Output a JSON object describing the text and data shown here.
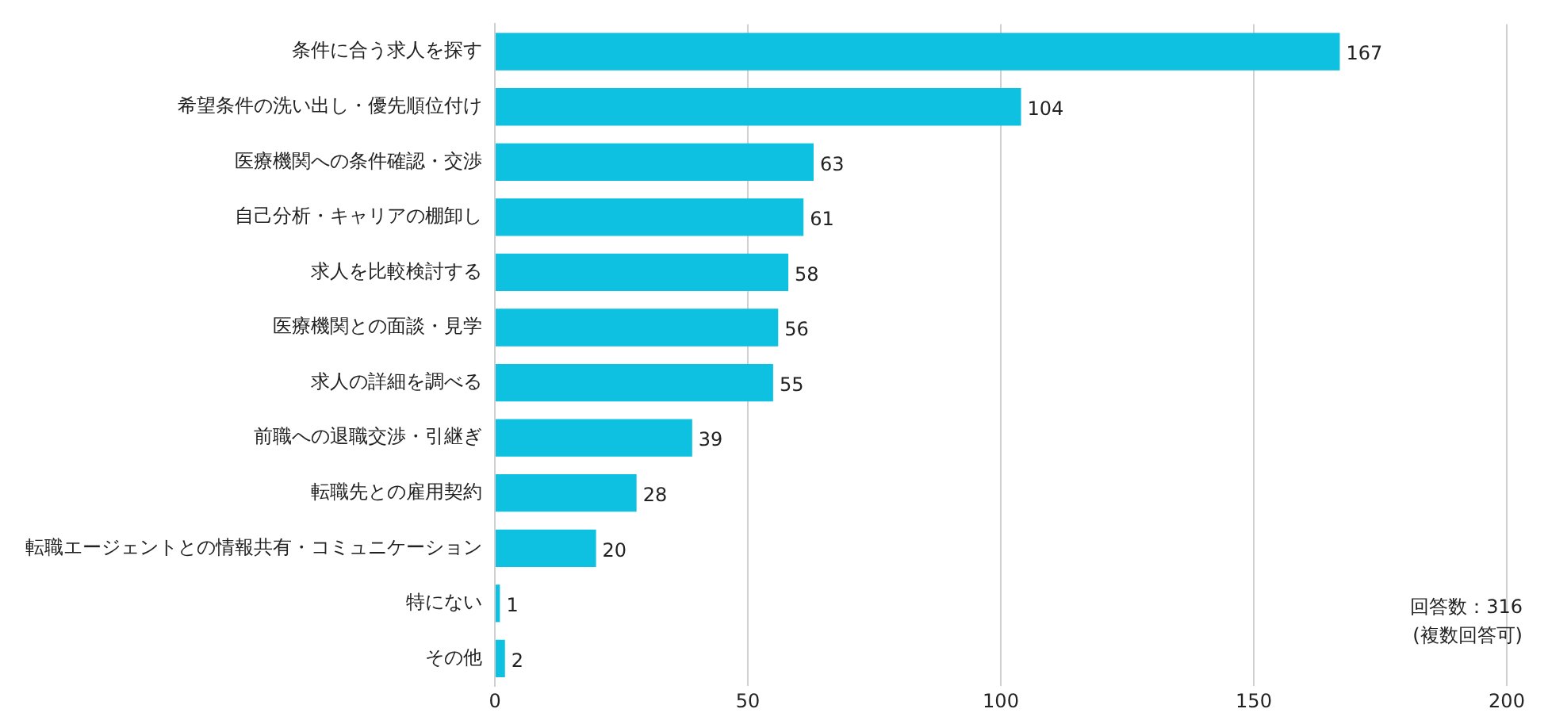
{
  "chart_data": {
    "type": "bar",
    "orientation": "horizontal",
    "categories": [
      "条件に合う求人を探す",
      "希望条件の洗い出し・優先順位付け",
      "医療機関への条件確認・交渉",
      "自己分析・キャリアの棚卸し",
      "求人を比較検討する",
      "医療機関との面談・見学",
      "求人の詳細を調べる",
      "前職への退職交渉・引継ぎ",
      "転職先との雇用契約",
      "転職エージェントとの情報共有・コミュニケーション",
      "特にない",
      "その他"
    ],
    "values": [
      167,
      104,
      63,
      61,
      58,
      56,
      55,
      39,
      28,
      20,
      1,
      2
    ],
    "color": "#0fc1e0",
    "xlim": [
      0,
      200
    ],
    "xticks": [
      0,
      50,
      100,
      150,
      200
    ],
    "grid": "x",
    "legend": false,
    "data_labels": true,
    "annotations": [
      "回答数：316",
      "(複数回答可)"
    ]
  }
}
